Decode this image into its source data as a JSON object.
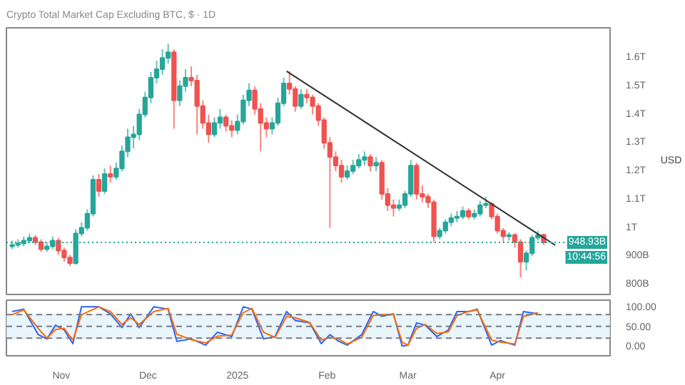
{
  "chart_data": [
    {
      "type": "candlestick",
      "title": "Crypto Total Market Cap Excluding BTC, $ · 1D",
      "ylabel": "USD",
      "tick_labels": "y",
      "grid": false,
      "xlim": [
        "2024-10-13",
        "2025-05-10"
      ],
      "ylim": [
        765000000000.0,
        1706000000000.0
      ],
      "yticks": [
        {
          "value": 800000000000.0,
          "label": "800B"
        },
        {
          "value": 900000000000.0,
          "label": "900B"
        },
        {
          "value": 1000000000000.0,
          "label": "1T"
        },
        {
          "value": 1100000000000.0,
          "label": "1.1T"
        },
        {
          "value": 1200000000000.0,
          "label": "1.2T"
        },
        {
          "value": 1300000000000.0,
          "label": "1.3T"
        },
        {
          "value": 1400000000000.0,
          "label": "1.4T"
        },
        {
          "value": 1500000000000.0,
          "label": "1.5T"
        },
        {
          "value": 1600000000000.0,
          "label": "1.6T"
        }
      ],
      "x": [
        "2024-10-15",
        "2024-10-17",
        "2024-10-19",
        "2024-10-21",
        "2024-10-23",
        "2024-10-25",
        "2024-10-27",
        "2024-10-29",
        "2024-10-31",
        "2024-11-02",
        "2024-11-04",
        "2024-11-06",
        "2024-11-08",
        "2024-11-10",
        "2024-11-12",
        "2024-11-14",
        "2024-11-16",
        "2024-11-18",
        "2024-11-20",
        "2024-11-22",
        "2024-11-24",
        "2024-11-26",
        "2024-11-28",
        "2024-11-30",
        "2024-12-02",
        "2024-12-04",
        "2024-12-06",
        "2024-12-08",
        "2024-12-10",
        "2024-12-12",
        "2024-12-14",
        "2024-12-16",
        "2024-12-18",
        "2024-12-20",
        "2024-12-22",
        "2024-12-24",
        "2024-12-26",
        "2024-12-28",
        "2024-12-30",
        "2025-01-01",
        "2025-01-03",
        "2025-01-05",
        "2025-01-07",
        "2025-01-09",
        "2025-01-11",
        "2025-01-13",
        "2025-01-15",
        "2025-01-17",
        "2025-01-19",
        "2025-01-21",
        "2025-01-23",
        "2025-01-25",
        "2025-01-27",
        "2025-01-29",
        "2025-01-31",
        "2025-02-02",
        "2025-02-04",
        "2025-02-06",
        "2025-02-08",
        "2025-02-10",
        "2025-02-12",
        "2025-02-14",
        "2025-02-16",
        "2025-02-18",
        "2025-02-20",
        "2025-02-22",
        "2025-02-24",
        "2025-02-26",
        "2025-02-28",
        "2025-03-02",
        "2025-03-04",
        "2025-03-06",
        "2025-03-08",
        "2025-03-10",
        "2025-03-12",
        "2025-03-14",
        "2025-03-16",
        "2025-03-18",
        "2025-03-20",
        "2025-03-22",
        "2025-03-24",
        "2025-03-26",
        "2025-03-28",
        "2025-03-30",
        "2025-04-01",
        "2025-04-03",
        "2025-04-05",
        "2025-04-07",
        "2025-04-09",
        "2025-04-11",
        "2025-04-13",
        "2025-04-15",
        "2025-04-17"
      ],
      "ohlc": [
        [
          935000000000.0,
          955000000000.0,
          925000000000.0,
          940000000000.0
        ],
        [
          940000000000.0,
          960000000000.0,
          930000000000.0,
          945000000000.0
        ],
        [
          945000000000.0,
          970000000000.0,
          935000000000.0,
          955000000000.0
        ],
        [
          955000000000.0,
          980000000000.0,
          945000000000.0,
          965000000000.0
        ],
        [
          965000000000.0,
          975000000000.0,
          940000000000.0,
          950000000000.0
        ],
        [
          950000000000.0,
          960000000000.0,
          915000000000.0,
          925000000000.0
        ],
        [
          925000000000.0,
          950000000000.0,
          915000000000.0,
          935000000000.0
        ],
        [
          935000000000.0,
          970000000000.0,
          925000000000.0,
          955000000000.0
        ],
        [
          955000000000.0,
          965000000000.0,
          905000000000.0,
          920000000000.0
        ],
        [
          920000000000.0,
          930000000000.0,
          880000000000.0,
          895000000000.0
        ],
        [
          895000000000.0,
          905000000000.0,
          865000000000.0,
          875000000000.0
        ],
        [
          875000000000.0,
          995000000000.0,
          870000000000.0,
          980000000000.0
        ],
        [
          980000000000.0,
          1020000000000.0,
          970000000000.0,
          1000000000000.0
        ],
        [
          1000000000000.0,
          1065000000000.0,
          990000000000.0,
          1050000000000.0
        ],
        [
          1050000000000.0,
          1185000000000.0,
          1040000000000.0,
          1170000000000.0
        ],
        [
          1170000000000.0,
          1190000000000.0,
          1110000000000.0,
          1130000000000.0
        ],
        [
          1130000000000.0,
          1210000000000.0,
          1120000000000.0,
          1190000000000.0
        ],
        [
          1190000000000.0,
          1220000000000.0,
          1160000000000.0,
          1180000000000.0
        ],
        [
          1180000000000.0,
          1230000000000.0,
          1170000000000.0,
          1210000000000.0
        ],
        [
          1210000000000.0,
          1290000000000.0,
          1200000000000.0,
          1270000000000.0
        ],
        [
          1270000000000.0,
          1350000000000.0,
          1250000000000.0,
          1320000000000.0
        ],
        [
          1320000000000.0,
          1360000000000.0,
          1280000000000.0,
          1330000000000.0
        ],
        [
          1330000000000.0,
          1420000000000.0,
          1310000000000.0,
          1400000000000.0
        ],
        [
          1400000000000.0,
          1480000000000.0,
          1390000000000.0,
          1460000000000.0
        ],
        [
          1460000000000.0,
          1550000000000.0,
          1440000000000.0,
          1530000000000.0
        ],
        [
          1530000000000.0,
          1590000000000.0,
          1510000000000.0,
          1560000000000.0
        ],
        [
          1560000000000.0,
          1630000000000.0,
          1540000000000.0,
          1600000000000.0
        ],
        [
          1600000000000.0,
          1650000000000.0,
          1580000000000.0,
          1620000000000.0
        ],
        [
          1620000000000.0,
          1630000000000.0,
          1350000000000.0,
          1450000000000.0
        ],
        [
          1450000000000.0,
          1520000000000.0,
          1430000000000.0,
          1500000000000.0
        ],
        [
          1500000000000.0,
          1560000000000.0,
          1480000000000.0,
          1530000000000.0
        ],
        [
          1530000000000.0,
          1570000000000.0,
          1500000000000.0,
          1520000000000.0
        ],
        [
          1520000000000.0,
          1540000000000.0,
          1330000000000.0,
          1430000000000.0
        ],
        [
          1430000000000.0,
          1450000000000.0,
          1350000000000.0,
          1370000000000.0
        ],
        [
          1370000000000.0,
          1400000000000.0,
          1300000000000.0,
          1330000000000.0
        ],
        [
          1330000000000.0,
          1390000000000.0,
          1320000000000.0,
          1370000000000.0
        ],
        [
          1370000000000.0,
          1420000000000.0,
          1350000000000.0,
          1390000000000.0
        ],
        [
          1390000000000.0,
          1400000000000.0,
          1340000000000.0,
          1360000000000.0
        ],
        [
          1360000000000.0,
          1380000000000.0,
          1320000000000.0,
          1345000000000.0
        ],
        [
          1345000000000.0,
          1400000000000.0,
          1330000000000.0,
          1375000000000.0
        ],
        [
          1375000000000.0,
          1470000000000.0,
          1365000000000.0,
          1450000000000.0
        ],
        [
          1450000000000.0,
          1510000000000.0,
          1430000000000.0,
          1485000000000.0
        ],
        [
          1485000000000.0,
          1500000000000.0,
          1400000000000.0,
          1420000000000.0
        ],
        [
          1420000000000.0,
          1440000000000.0,
          1270000000000.0,
          1370000000000.0
        ],
        [
          1370000000000.0,
          1390000000000.0,
          1320000000000.0,
          1350000000000.0
        ],
        [
          1350000000000.0,
          1390000000000.0,
          1330000000000.0,
          1370000000000.0
        ],
        [
          1370000000000.0,
          1460000000000.0,
          1360000000000.0,
          1440000000000.0
        ],
        [
          1440000000000.0,
          1530000000000.0,
          1430000000000.0,
          1510000000000.0
        ],
        [
          1510000000000.0,
          1553000000000.0,
          1470000000000.0,
          1490000000000.0
        ],
        [
          1490000000000.0,
          1500000000000.0,
          1410000000000.0,
          1430000000000.0
        ],
        [
          1430000000000.0,
          1490000000000.0,
          1420000000000.0,
          1470000000000.0
        ],
        [
          1470000000000.0,
          1490000000000.0,
          1440000000000.0,
          1460000000000.0
        ],
        [
          1460000000000.0,
          1470000000000.0,
          1400000000000.0,
          1430000000000.0
        ],
        [
          1430000000000.0,
          1440000000000.0,
          1360000000000.0,
          1380000000000.0
        ],
        [
          1380000000000.0,
          1390000000000.0,
          1280000000000.0,
          1300000000000.0
        ],
        [
          1300000000000.0,
          1320000000000.0,
          1000000000000.0,
          1250000000000.0
        ],
        [
          1250000000000.0,
          1270000000000.0,
          1200000000000.0,
          1220000000000.0
        ],
        [
          1220000000000.0,
          1240000000000.0,
          1160000000000.0,
          1180000000000.0
        ],
        [
          1180000000000.0,
          1220000000000.0,
          1170000000000.0,
          1200000000000.0
        ],
        [
          1200000000000.0,
          1240000000000.0,
          1190000000000.0,
          1220000000000.0
        ],
        [
          1220000000000.0,
          1260000000000.0,
          1210000000000.0,
          1240000000000.0
        ],
        [
          1240000000000.0,
          1270000000000.0,
          1220000000000.0,
          1250000000000.0
        ],
        [
          1250000000000.0,
          1260000000000.0,
          1200000000000.0,
          1220000000000.0
        ],
        [
          1220000000000.0,
          1250000000000.0,
          1200000000000.0,
          1230000000000.0
        ],
        [
          1230000000000.0,
          1240000000000.0,
          1100000000000.0,
          1120000000000.0
        ],
        [
          1120000000000.0,
          1140000000000.0,
          1060000000000.0,
          1080000000000.0
        ],
        [
          1080000000000.0,
          1100000000000.0,
          1040000000000.0,
          1070000000000.0
        ],
        [
          1070000000000.0,
          1100000000000.0,
          1060000000000.0,
          1080000000000.0
        ],
        [
          1080000000000.0,
          1130000000000.0,
          1070000000000.0,
          1120000000000.0
        ],
        [
          1120000000000.0,
          1240000000000.0,
          1110000000000.0,
          1220000000000.0
        ],
        [
          1220000000000.0,
          1230000000000.0,
          1100000000000.0,
          1120000000000.0
        ],
        [
          1120000000000.0,
          1150000000000.0,
          1090000000000.0,
          1110000000000.0
        ],
        [
          1110000000000.0,
          1120000000000.0,
          1070000000000.0,
          1090000000000.0
        ],
        [
          1090000000000.0,
          1100000000000.0,
          950000000000.0,
          970000000000.0
        ],
        [
          970000000000.0,
          1000000000000.0,
          960000000000.0,
          990000000000.0
        ],
        [
          990000000000.0,
          1030000000000.0,
          980000000000.0,
          1020000000000.0
        ],
        [
          1020000000000.0,
          1050000000000.0,
          1005000000000.0,
          1035000000000.0
        ],
        [
          1035000000000.0,
          1060000000000.0,
          1020000000000.0,
          1040000000000.0
        ],
        [
          1040000000000.0,
          1075000000000.0,
          1030000000000.0,
          1060000000000.0
        ],
        [
          1060000000000.0,
          1070000000000.0,
          1030000000000.0,
          1040000000000.0
        ],
        [
          1040000000000.0,
          1065000000000.0,
          1030000000000.0,
          1050000000000.0
        ],
        [
          1050000000000.0,
          1095000000000.0,
          1040000000000.0,
          1080000000000.0
        ],
        [
          1080000000000.0,
          1110000000000.0,
          1070000000000.0,
          1085000000000.0
        ],
        [
          1085000000000.0,
          1090000000000.0,
          1030000000000.0,
          1040000000000.0
        ],
        [
          1040000000000.0,
          1050000000000.0,
          980000000000.0,
          990000000000.0
        ],
        [
          990000000000.0,
          1000000000000.0,
          950000000000.0,
          970000000000.0
        ],
        [
          970000000000.0,
          985000000000.0,
          955000000000.0,
          975000000000.0
        ],
        [
          975000000000.0,
          980000000000.0,
          930000000000.0,
          950000000000.0
        ],
        [
          950000000000.0,
          960000000000.0,
          825000000000.0,
          880000000000.0
        ],
        [
          880000000000.0,
          920000000000.0,
          850000000000.0,
          910000000000.0
        ],
        [
          910000000000.0,
          975000000000.0,
          900000000000.0,
          965000000000.0
        ],
        [
          965000000000.0,
          990000000000.0,
          955000000000.0,
          975000000000.0
        ],
        [
          975000000000.0,
          980000000000.0,
          940000000000.0,
          948930000000.0
        ]
      ],
      "series": [
        {
          "type": "line",
          "x": [
            "2025-01-18",
            "2025-04-21"
          ],
          "values": [
            1553000000000.0,
            939000000000.0
          ],
          "color": "#333333"
        }
      ],
      "ref_lines": [
        {
          "axis": "y",
          "value": 948930000000.0,
          "label": "948.93B",
          "color": "#26a69a",
          "line_style": "dotted"
        }
      ],
      "annotations": [
        "10:44:56"
      ]
    },
    {
      "type": "line",
      "tick_labels": "xy",
      "grid": false,
      "xlim": [
        "2024-10-13",
        "2025-05-10"
      ],
      "ylim": [
        -25,
        117
      ],
      "xticks": [
        {
          "value": "2024-11-01",
          "label": "Nov"
        },
        {
          "value": "2024-12-01",
          "label": "Dec"
        },
        {
          "value": "2025-01-01",
          "label": "2025"
        },
        {
          "value": "2025-02-01",
          "label": "Feb"
        },
        {
          "value": "2025-03-01",
          "label": "Mar"
        },
        {
          "value": "2025-04-01",
          "label": "Apr"
        }
      ],
      "yticks": [
        {
          "value": 0,
          "label": "0.00"
        },
        {
          "value": 50,
          "label": "50.00"
        },
        {
          "value": 100,
          "label": "100.00"
        }
      ],
      "x": [
        "2024-10-15",
        "2024-10-19",
        "2024-10-24",
        "2024-10-27",
        "2024-10-30",
        "2024-11-02",
        "2024-11-05",
        "2024-11-08",
        "2024-11-14",
        "2024-11-18",
        "2024-11-22",
        "2024-11-25",
        "2024-11-28",
        "2024-12-03",
        "2024-12-08",
        "2024-12-11",
        "2024-12-16",
        "2024-12-21",
        "2024-12-25",
        "2024-12-30",
        "2025-01-03",
        "2025-01-06",
        "2025-01-10",
        "2025-01-14",
        "2025-01-18",
        "2025-01-21",
        "2025-01-26",
        "2025-01-30",
        "2025-02-02",
        "2025-02-05",
        "2025-02-08",
        "2025-02-13",
        "2025-02-17",
        "2025-02-20",
        "2025-02-24",
        "2025-02-27",
        "2025-03-01",
        "2025-03-04",
        "2025-03-07",
        "2025-03-11",
        "2025-03-15",
        "2025-03-18",
        "2025-03-22",
        "2025-03-25",
        "2025-03-30",
        "2025-04-02",
        "2025-04-07",
        "2025-04-10",
        "2025-04-15"
      ],
      "series": [
        {
          "color": "#2962ff",
          "values": [
            88,
            94,
            29,
            18,
            53,
            41,
            6,
            100,
            100,
            82,
            47,
            82,
            47,
            100,
            94,
            12,
            18,
            2,
            35,
            24,
            100,
            94,
            18,
            24,
            88,
            65,
            59,
            6,
            29,
            12,
            2,
            29,
            88,
            76,
            82,
            0,
            2,
            59,
            53,
            24,
            41,
            88,
            88,
            94,
            2,
            14,
            2,
            88,
            82
          ]
        },
        {
          "color": "#ff6d00",
          "values": [
            80,
            92,
            45,
            20,
            42,
            45,
            15,
            80,
            100,
            88,
            55,
            72,
            55,
            88,
            96,
            30,
            16,
            8,
            25,
            28,
            85,
            96,
            35,
            22,
            75,
            72,
            60,
            15,
            22,
            18,
            5,
            22,
            78,
            80,
            80,
            10,
            2,
            45,
            55,
            32,
            36,
            78,
            88,
            92,
            15,
            10,
            5,
            75,
            85
          ]
        }
      ],
      "bands": [
        {
          "axis": "y",
          "from": 20,
          "to": 80,
          "color": "#e3f2fd"
        }
      ],
      "ref_lines": [
        {
          "axis": "y",
          "value": 20,
          "color": "#787b86",
          "line_style": "dashed"
        },
        {
          "axis": "y",
          "value": 50,
          "color": "#787b86",
          "line_style": "dashed"
        },
        {
          "axis": "y",
          "value": 80,
          "color": "#787b86",
          "line_style": "dashed"
        }
      ]
    }
  ]
}
